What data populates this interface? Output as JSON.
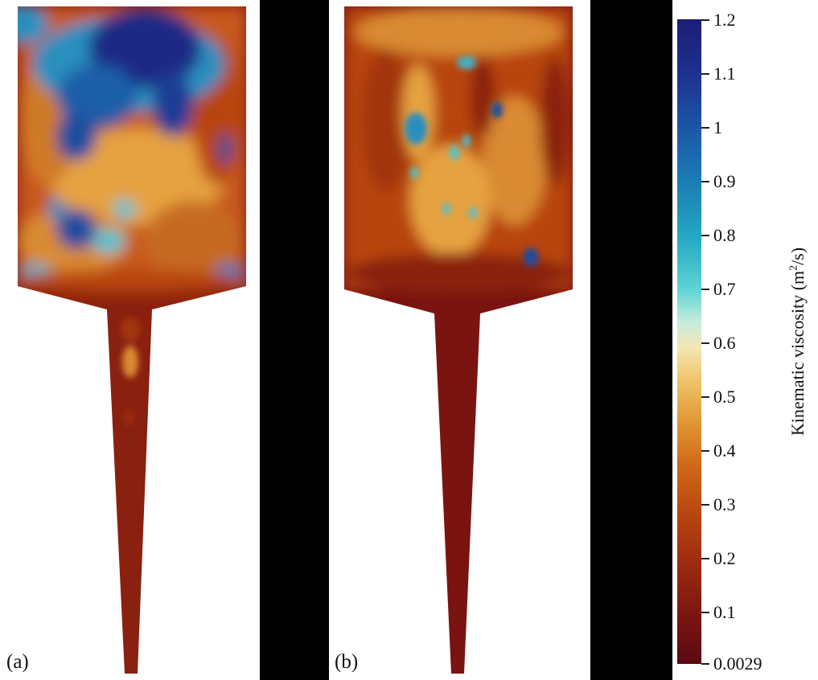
{
  "panels": [
    {
      "label": "(a)"
    },
    {
      "label": "(b)"
    }
  ],
  "colorbar": {
    "title_prefix": "Kinematic viscosity  (m",
    "title_exponent": "2",
    "title_suffix": "/s)",
    "min": 0.0029,
    "max": 1.2,
    "tick_labels": [
      "1.2",
      "1.1",
      "1",
      "0.9",
      "0.8",
      "0.7",
      "0.6",
      "0.5",
      "0.4",
      "0.3",
      "0.2",
      "0.1",
      "0.0029"
    ],
    "colormap": [
      "#5a0a12",
      "#9a2a10",
      "#d06a18",
      "#efc46a",
      "#f4e6b2",
      "#5fd4d4",
      "#1a7cb4",
      "#1b1e75"
    ]
  }
}
